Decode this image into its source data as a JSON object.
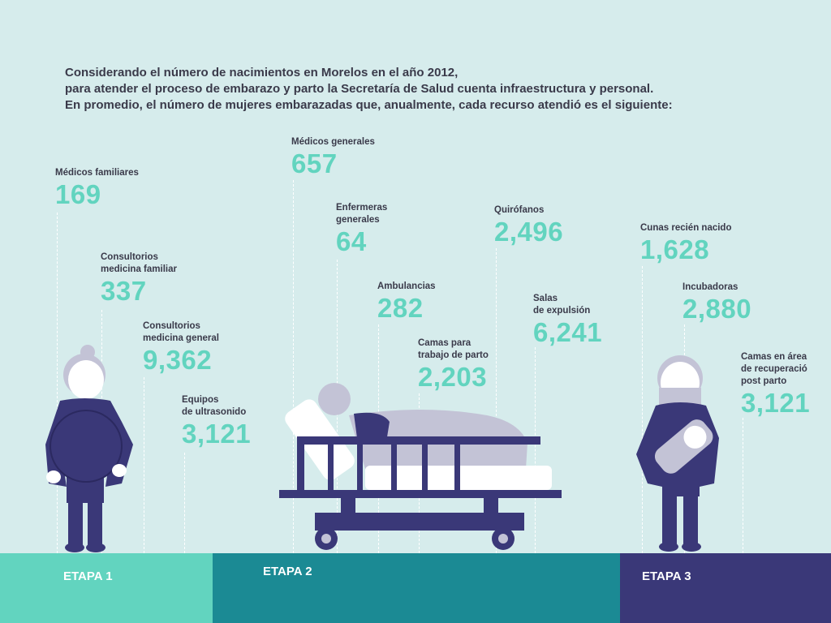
{
  "intro": {
    "line1": "Considerando el número de nacimientos en Morelos en el año 2012,",
    "line2": "para atender el proceso de embarazo y parto la Secretaría de Salud cuenta infraestructura y personal.",
    "line3": "En promedio, el número de mujeres embarazadas que, anualmente, cada recurso atendió es el siguiente:"
  },
  "stats": [
    {
      "label": "Médicos familiares",
      "value": "169"
    },
    {
      "label": "Consultorios\nmedicina familiar",
      "value": "337"
    },
    {
      "label": "Consultorios\nmedicina general",
      "value": "9,362"
    },
    {
      "label": "Equipos\nde ultrasonido",
      "value": "3,121"
    },
    {
      "label": "Médicos generales",
      "value": "657"
    },
    {
      "label": "Enfermeras\ngenerales",
      "value": "64"
    },
    {
      "label": "Ambulancias",
      "value": "282"
    },
    {
      "label": "Camas para\ntrabajo de parto",
      "value": "2,203"
    },
    {
      "label": "Quirófanos",
      "value": "2,496"
    },
    {
      "label": "Salas\nde expulsión",
      "value": "6,241"
    },
    {
      "label": "Cunas recién nacido",
      "value": "1,628"
    },
    {
      "label": "Incubadoras",
      "value": "2,880"
    },
    {
      "label": "Camas en área\nde recuperació\npost parto",
      "value": "3,121"
    }
  ],
  "stages": [
    {
      "label": "ETAPA 1",
      "color": "#62d4bf"
    },
    {
      "label": "ETAPA 2",
      "color": "#1b8a94"
    },
    {
      "label": "ETAPA 3",
      "color": "#3a3878"
    }
  ],
  "colors": {
    "background": "#d6ecec",
    "value_text": "#62d4bf",
    "figure_navy": "#3a3878",
    "figure_gray": "#c3c3d6"
  }
}
